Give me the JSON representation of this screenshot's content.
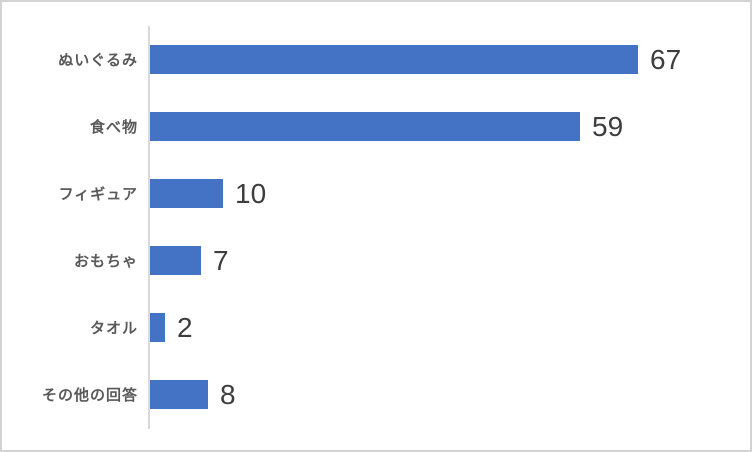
{
  "chart_data": {
    "type": "bar",
    "orientation": "horizontal",
    "title": "",
    "categories": [
      "ぬいぐるみ",
      "食べ物",
      "フィギュア",
      "おもちゃ",
      "タオル",
      "その他の回答"
    ],
    "values": [
      67,
      59,
      10,
      7,
      2,
      8
    ],
    "value_labels_shown": true,
    "xlim": [
      0,
      82
    ],
    "grid": false,
    "legend_position": "none",
    "bar_color": "#4472c4",
    "axis_line_color": "#d9d9d9",
    "category_label_color": "#595959",
    "value_label_color": "#3d3d3d",
    "background_color": "#ffffff",
    "border_color": "#d3d3d3"
  }
}
